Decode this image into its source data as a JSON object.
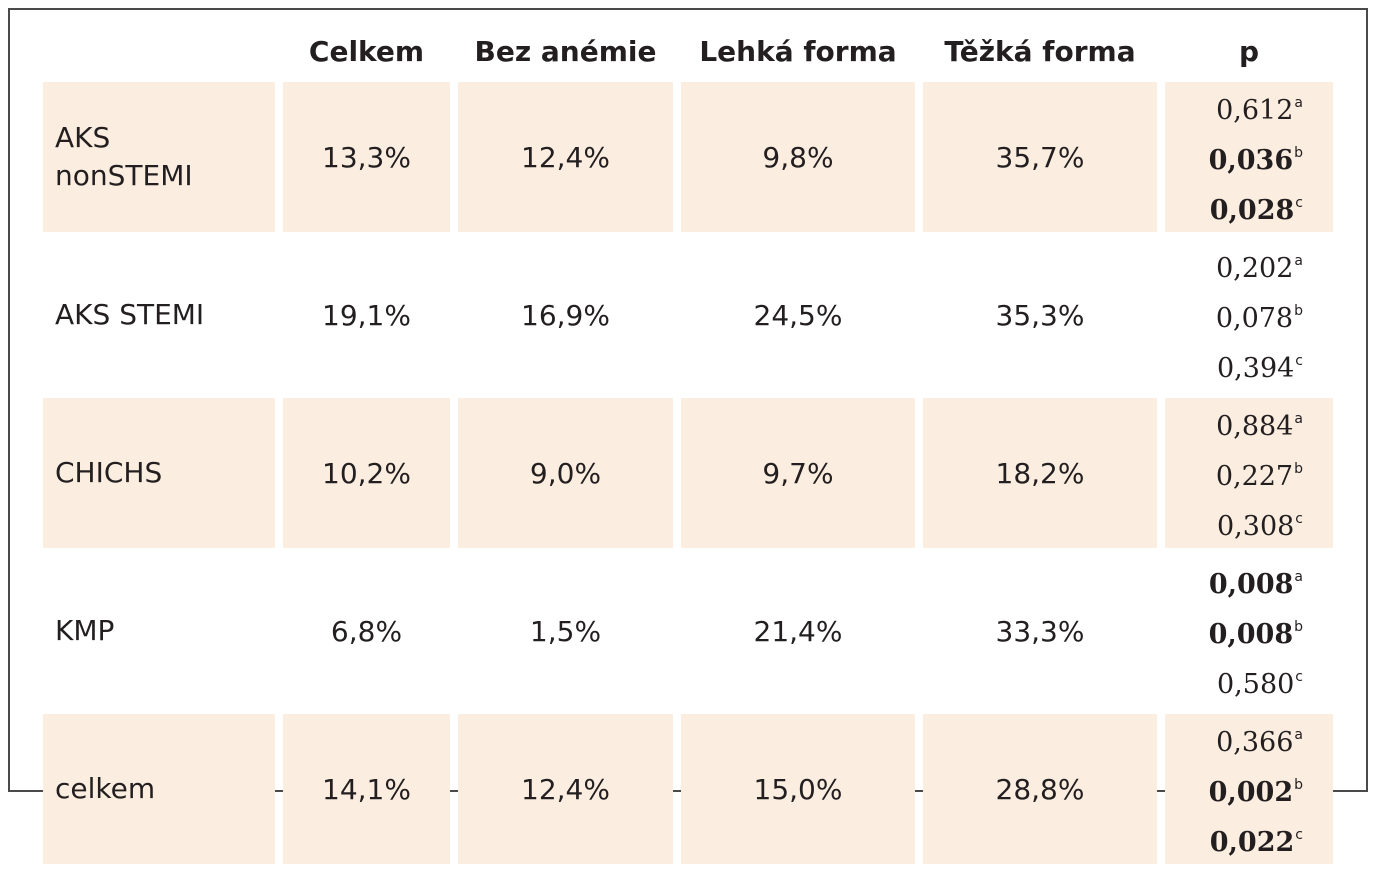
{
  "columns": [
    "",
    "Celkem",
    "Bez anémie",
    "Lehká forma",
    "Těžká forma",
    "p"
  ],
  "rows": [
    {
      "label": "AKS\nnonSTEMI",
      "values": [
        "13,3%",
        "12,4%",
        "9,8%",
        "35,7%"
      ],
      "p": [
        {
          "value": "0,612",
          "sup": "a",
          "bold": false
        },
        {
          "value": "0,036",
          "sup": "b",
          "bold": true
        },
        {
          "value": "0,028",
          "sup": "c",
          "bold": true
        }
      ]
    },
    {
      "label": "AKS STEMI",
      "values": [
        "19,1%",
        "16,9%",
        "24,5%",
        "35,3%"
      ],
      "p": [
        {
          "value": "0,202",
          "sup": "a",
          "bold": false
        },
        {
          "value": "0,078",
          "sup": "b",
          "bold": false
        },
        {
          "value": "0,394",
          "sup": "c",
          "bold": false
        }
      ]
    },
    {
      "label": "CHICHS",
      "values": [
        "10,2%",
        "9,0%",
        "9,7%",
        "18,2%"
      ],
      "p": [
        {
          "value": "0,884",
          "sup": "a",
          "bold": false
        },
        {
          "value": "0,227",
          "sup": "b",
          "bold": false
        },
        {
          "value": "0,308",
          "sup": "c",
          "bold": false
        }
      ]
    },
    {
      "label": "KMP",
      "values": [
        "6,8%",
        "1,5%",
        "21,4%",
        "33,3%"
      ],
      "p": [
        {
          "value": "0,008",
          "sup": "a",
          "bold": true
        },
        {
          "value": "0,008",
          "sup": "b",
          "bold": true
        },
        {
          "value": "0,580",
          "sup": "c",
          "bold": false
        }
      ]
    },
    {
      "label": "celkem",
      "values": [
        "14,1%",
        "12,4%",
        "15,0%",
        "28,8%"
      ],
      "p": [
        {
          "value": "0,366",
          "sup": "a",
          "bold": false
        },
        {
          "value": "0,002",
          "sup": "b",
          "bold": true
        },
        {
          "value": "0,022",
          "sup": "c",
          "bold": true
        }
      ]
    }
  ],
  "colors": {
    "shaded_row": "#fbeee0",
    "border": "#4a4a4a",
    "text": "#231f20"
  }
}
